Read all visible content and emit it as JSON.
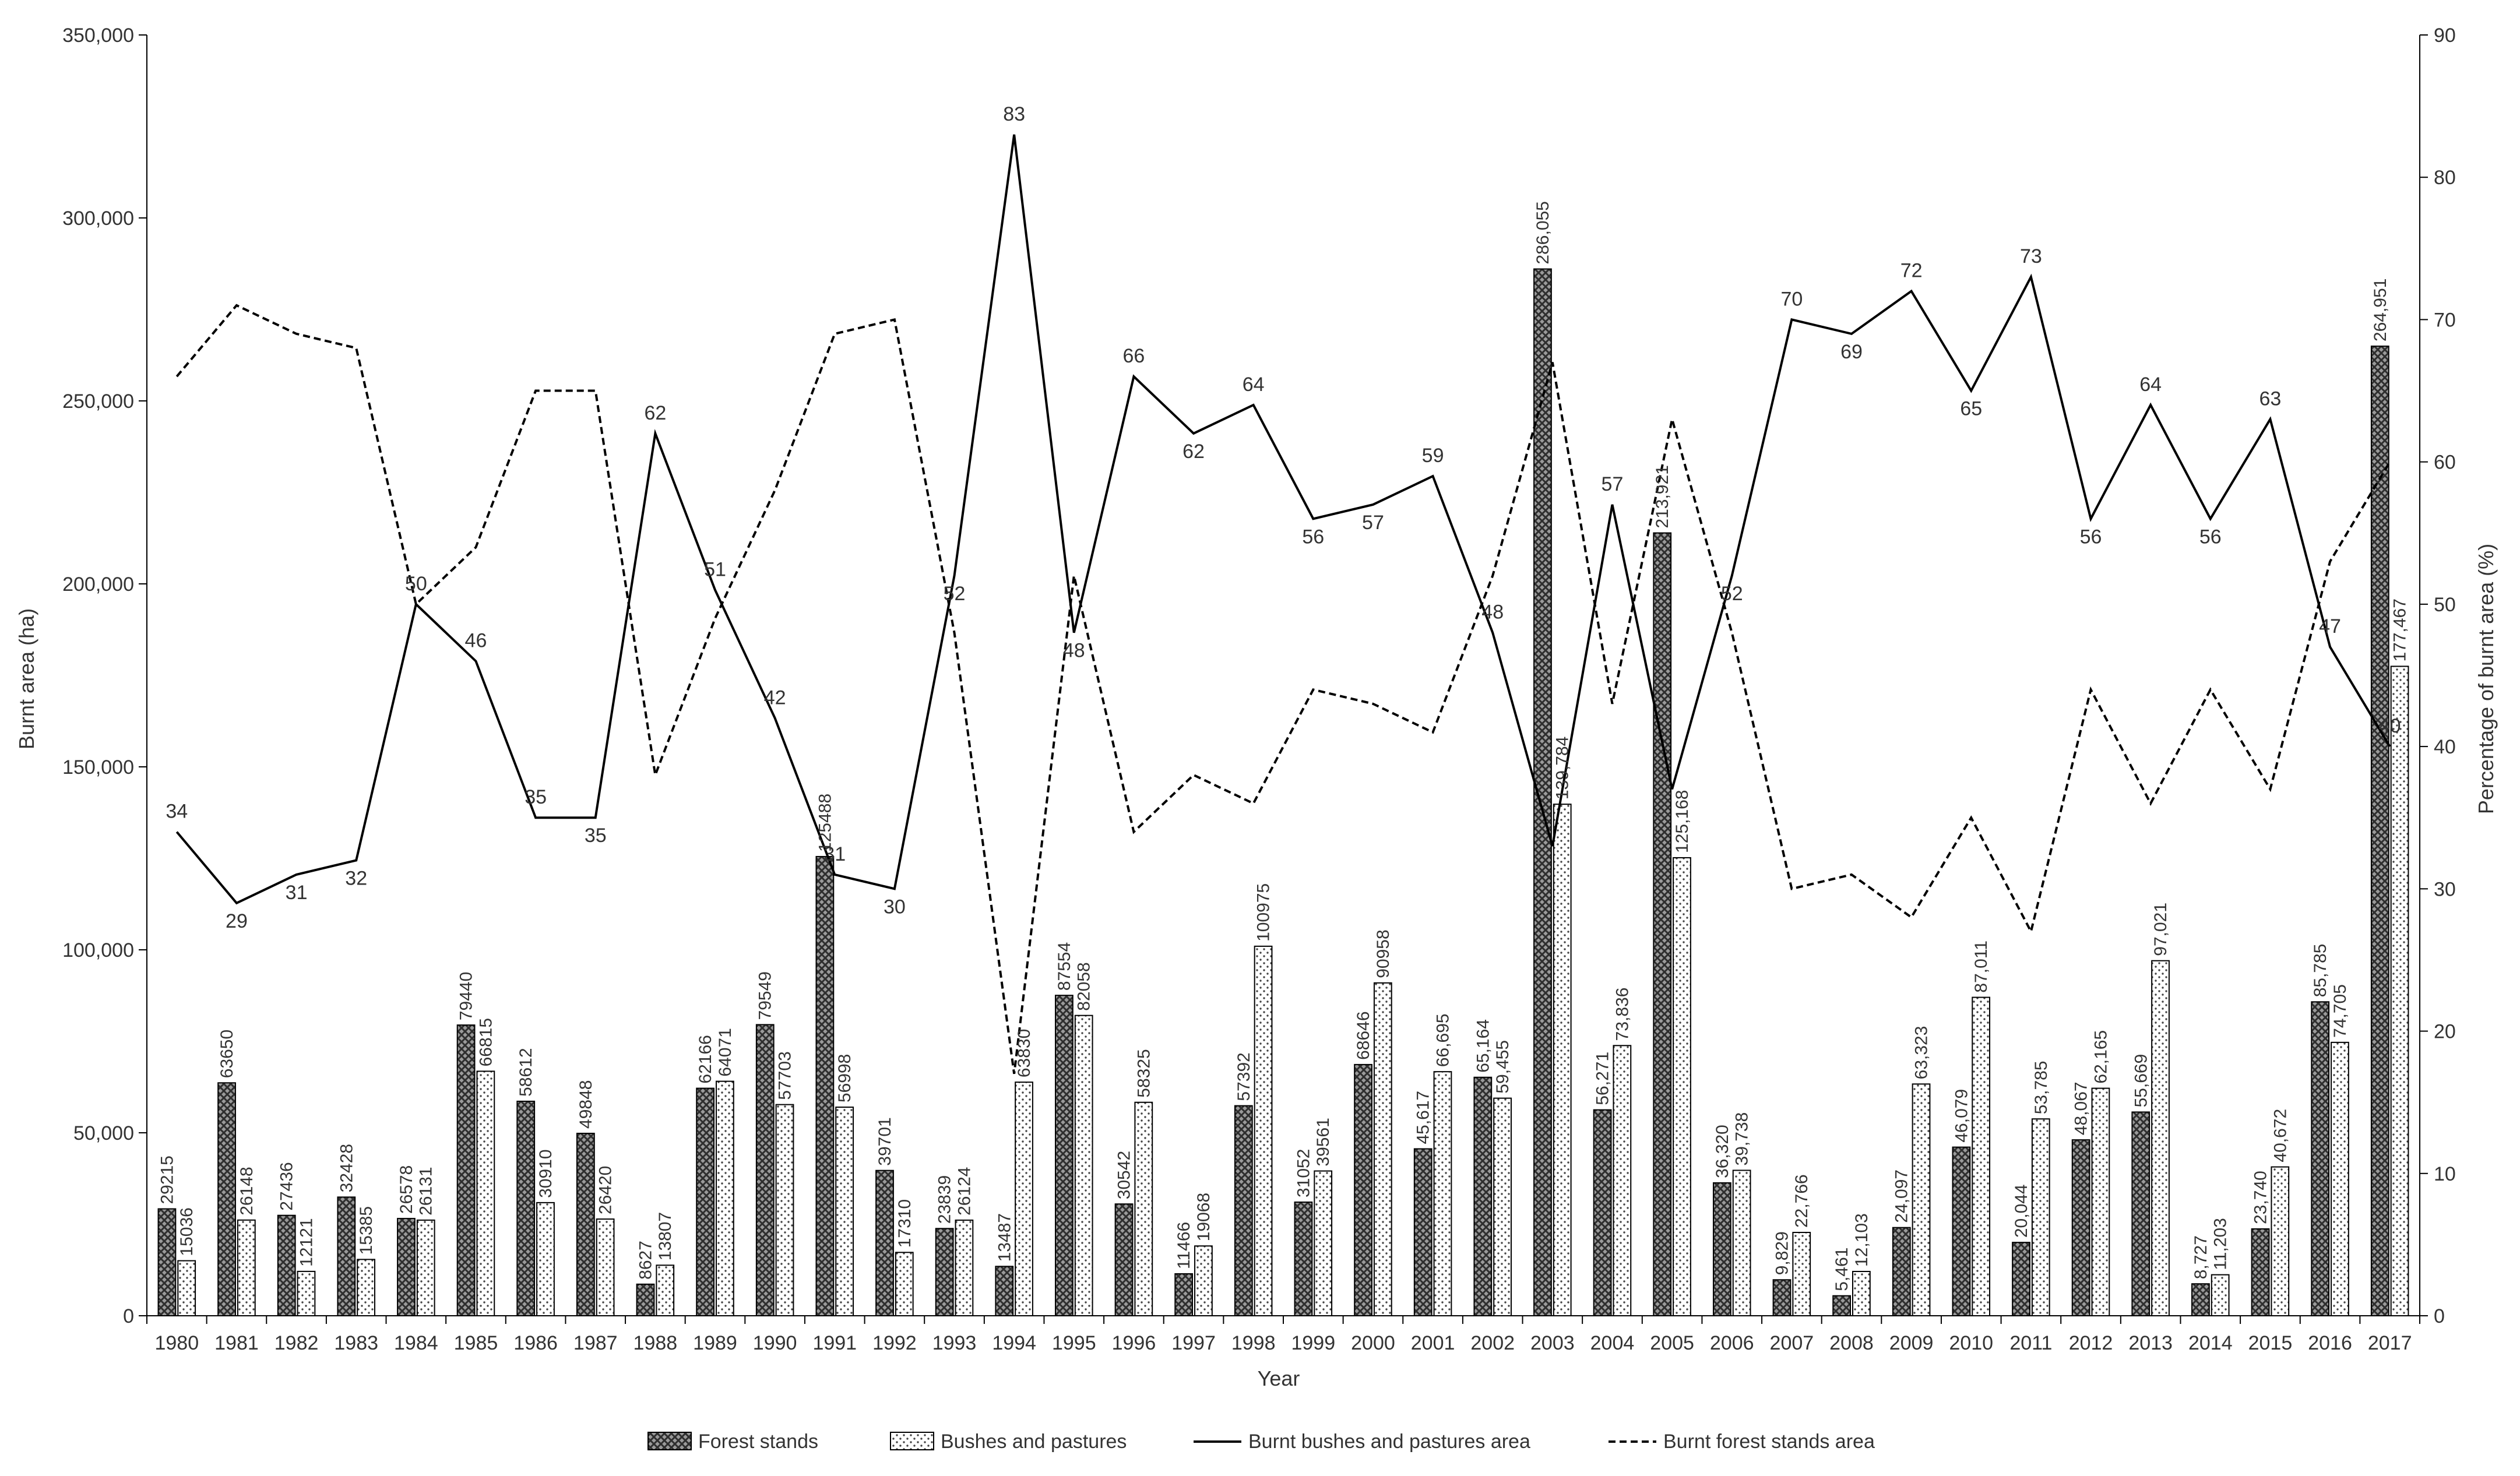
{
  "chart_data": {
    "type": "bar",
    "xlabel": "Year",
    "ylabel": "Burnt area (ha)",
    "y2label": "Percentage of burnt area (%)",
    "ylim": [
      0,
      350000
    ],
    "y2lim": [
      0,
      90
    ],
    "grid": false,
    "legend_position": "bottom",
    "colors": {
      "axis": "#000000",
      "text": "#333333",
      "bar_fill": "#ffffff",
      "bar_stroke": "#000000"
    },
    "yticks": [
      "0",
      "50,000",
      "100,000",
      "150,000",
      "200,000",
      "250,000",
      "300,000",
      "350,000"
    ],
    "y2ticks": [
      "0",
      "10",
      "20",
      "30",
      "40",
      "50",
      "60",
      "70",
      "80",
      "90"
    ],
    "categories": [
      "1980",
      "1981",
      "1982",
      "1983",
      "1984",
      "1985",
      "1986",
      "1987",
      "1988",
      "1989",
      "1990",
      "1991",
      "1992",
      "1993",
      "1994",
      "1995",
      "1996",
      "1997",
      "1998",
      "1999",
      "2000",
      "2001",
      "2002",
      "2003",
      "2004",
      "2005",
      "2006",
      "2007",
      "2008",
      "2009",
      "2010",
      "2011",
      "2012",
      "2013",
      "2014",
      "2015",
      "2016",
      "2017"
    ],
    "series": [
      {
        "name": "Forest stands",
        "kind": "bar",
        "pattern": "crosshatch",
        "values": [
          29215,
          63650,
          27436,
          32428,
          26578,
          79440,
          58612,
          49848,
          8627,
          62166,
          79549,
          125488,
          39701,
          23839,
          13487,
          87554,
          30542,
          11466,
          57392,
          31052,
          68646,
          45617,
          65164,
          286055,
          56271,
          213921,
          36320,
          9829,
          5461,
          24097,
          46079,
          20044,
          48067,
          55669,
          8727,
          23740,
          85785,
          264951
        ],
        "labels": [
          "29215",
          "63650",
          "27436",
          "32428",
          "26578",
          "79440",
          "58612",
          "49848",
          "8627",
          "62166",
          "79549",
          "125488",
          "39701",
          "23839",
          "13487",
          "87554",
          "30542",
          "11466",
          "57392",
          "31052",
          "68646",
          "45,617",
          "65,164",
          "286,055",
          "56,271",
          "213,921",
          "36,320",
          "9,829",
          "5,461",
          "24,097",
          "46,079",
          "20,044",
          "48,067",
          "55,669",
          "8,727",
          "23,740",
          "85,785",
          "264,951"
        ]
      },
      {
        "name": "Bushes and pastures",
        "kind": "bar",
        "pattern": "dots",
        "values": [
          15036,
          26148,
          12121,
          15385,
          26131,
          66815,
          30910,
          26420,
          13807,
          64071,
          57703,
          56998,
          17310,
          26124,
          63830,
          82058,
          58325,
          19068,
          100975,
          39561,
          90958,
          66695,
          59455,
          139784,
          73836,
          125168,
          39738,
          22766,
          12103,
          63323,
          87011,
          53785,
          62165,
          97021,
          11203,
          40672,
          74705,
          177467
        ],
        "labels": [
          "15036",
          "26148",
          "12121",
          "15385",
          "26131",
          "66815",
          "30910",
          "26420",
          "13807",
          "64071",
          "57703",
          "56998",
          "17310",
          "26124",
          "63830",
          "82058",
          "58325",
          "19068",
          "100975",
          "39561",
          "90958",
          "66,695",
          "59,455",
          "139,784",
          "73,836",
          "125,168",
          "39,738",
          "22,766",
          "12,103",
          "63,323",
          "87,011",
          "53,785",
          "62,165",
          "97,021",
          "11,203",
          "40,672",
          "74,705",
          "177,467"
        ]
      },
      {
        "name": "Burnt bushes and pastures area",
        "kind": "line",
        "axis": "right",
        "style": "solid",
        "values": [
          34,
          29,
          31,
          32,
          50,
          46,
          35,
          35,
          62,
          51,
          42,
          31,
          30,
          52,
          83,
          48,
          66,
          62,
          64,
          56,
          57,
          59,
          48,
          33,
          57,
          37,
          52,
          70,
          69,
          72,
          65,
          73,
          56,
          64,
          56,
          63,
          47,
          40
        ]
      },
      {
        "name": "Burnt forest stands area",
        "kind": "line",
        "axis": "right",
        "style": "dashed",
        "values": [
          66,
          71,
          69,
          68,
          50,
          54,
          65,
          65,
          38,
          49,
          58,
          69,
          70,
          48,
          17,
          52,
          34,
          38,
          36,
          44,
          43,
          41,
          52,
          67,
          43,
          63,
          48,
          30,
          31,
          28,
          35,
          27,
          44,
          36,
          44,
          37,
          53,
          60
        ]
      }
    ],
    "point_labels": [
      "34",
      "29",
      "31",
      "32",
      "50",
      "46",
      "35",
      "35",
      "62",
      "51",
      "42",
      "31",
      "30",
      "52",
      "83",
      "48",
      "66",
      "62",
      "64",
      "56",
      "57",
      "59",
      "48",
      "",
      "57",
      "",
      "52",
      "70",
      "69",
      "72",
      "65",
      "73",
      "56",
      "64",
      "56",
      "63",
      "47",
      "40"
    ]
  }
}
